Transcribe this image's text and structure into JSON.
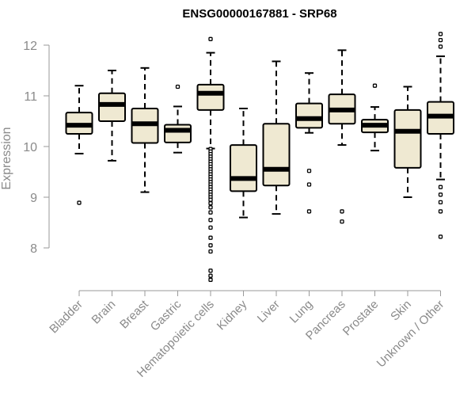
{
  "chart_data": {
    "type": "boxplot",
    "title": "ENSG00000167881 - SRP68",
    "xlabel": "",
    "ylabel": "Expression",
    "ylim": [
      7.3,
      12.3
    ],
    "yticks": [
      "8",
      "9",
      "10",
      "11",
      "12"
    ],
    "box_fill": "#efe9d2",
    "categories": [
      "Bladder",
      "Brain",
      "Breast",
      "Gastric",
      "Hematopoietic cells",
      "Kidney",
      "Liver",
      "Lung",
      "Pancreas",
      "Prostate",
      "Skin",
      "Unknown / Other"
    ],
    "boxes": [
      {
        "name": "Bladder",
        "whisker_low": 9.86,
        "q1": 10.25,
        "median": 10.42,
        "q3": 10.67,
        "whisker_high": 11.2,
        "outliers": [
          8.89
        ]
      },
      {
        "name": "Brain",
        "whisker_low": 9.72,
        "q1": 10.5,
        "median": 10.83,
        "q3": 11.05,
        "whisker_high": 11.5,
        "outliers": []
      },
      {
        "name": "Breast",
        "whisker_low": 9.1,
        "q1": 10.07,
        "median": 10.45,
        "q3": 10.75,
        "whisker_high": 11.55,
        "outliers": []
      },
      {
        "name": "Gastric",
        "whisker_low": 9.88,
        "q1": 10.08,
        "median": 10.32,
        "q3": 10.43,
        "whisker_high": 10.79,
        "outliers": [
          11.18
        ]
      },
      {
        "name": "Hematopoietic cells",
        "whisker_low": 9.96,
        "q1": 10.72,
        "median": 11.05,
        "q3": 11.22,
        "whisker_high": 11.85,
        "outliers": [
          12.12,
          9.95,
          9.9,
          9.85,
          9.8,
          9.75,
          9.7,
          9.65,
          9.6,
          9.55,
          9.5,
          9.45,
          9.4,
          9.35,
          9.3,
          9.25,
          9.2,
          9.15,
          9.1,
          9.05,
          9.0,
          8.95,
          8.88,
          8.8,
          8.7,
          8.55,
          8.4,
          8.2,
          8.05,
          7.93,
          7.55,
          7.45,
          7.37
        ]
      },
      {
        "name": "Kidney",
        "whisker_low": 8.6,
        "q1": 9.12,
        "median": 9.37,
        "q3": 10.03,
        "whisker_high": 10.75,
        "outliers": []
      },
      {
        "name": "Liver",
        "whisker_low": 8.67,
        "q1": 9.23,
        "median": 9.55,
        "q3": 10.45,
        "whisker_high": 11.68,
        "outliers": []
      },
      {
        "name": "Lung",
        "whisker_low": 10.27,
        "q1": 10.37,
        "median": 10.55,
        "q3": 10.85,
        "whisker_high": 11.45,
        "outliers": [
          9.52,
          9.25,
          8.72
        ]
      },
      {
        "name": "Pancreas",
        "whisker_low": 10.03,
        "q1": 10.45,
        "median": 10.72,
        "q3": 11.03,
        "whisker_high": 11.9,
        "outliers": [
          8.72,
          8.52
        ]
      },
      {
        "name": "Prostate",
        "whisker_low": 9.92,
        "q1": 10.28,
        "median": 10.42,
        "q3": 10.53,
        "whisker_high": 10.78,
        "outliers": [
          11.2
        ]
      },
      {
        "name": "Skin",
        "whisker_low": 9.0,
        "q1": 9.58,
        "median": 10.3,
        "q3": 10.72,
        "whisker_high": 11.18,
        "outliers": []
      },
      {
        "name": "Unknown / Other",
        "whisker_low": 9.35,
        "q1": 10.25,
        "median": 10.6,
        "q3": 10.88,
        "whisker_high": 11.78,
        "outliers": [
          12.22,
          12.1,
          11.97,
          9.2,
          9.05,
          8.9,
          8.72,
          8.22
        ]
      }
    ]
  }
}
